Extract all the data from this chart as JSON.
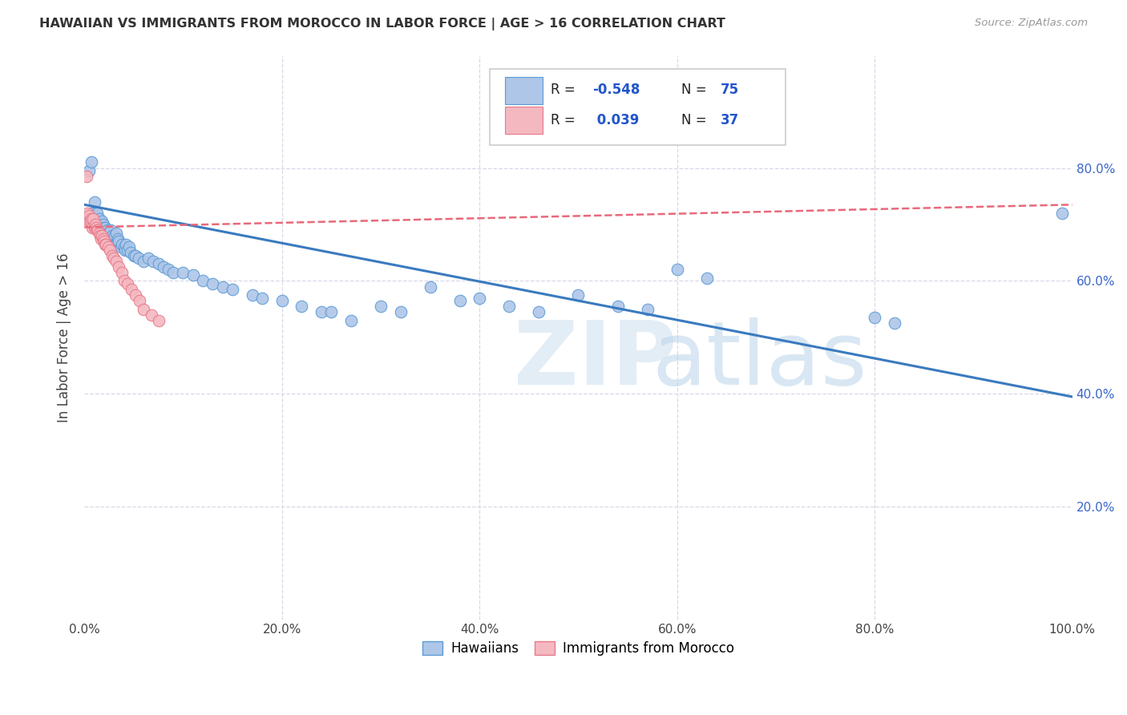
{
  "title": "HAWAIIAN VS IMMIGRANTS FROM MOROCCO IN LABOR FORCE | AGE > 16 CORRELATION CHART",
  "source": "Source: ZipAtlas.com",
  "ylabel": "In Labor Force | Age > 16",
  "xlim": [
    0.0,
    1.0
  ],
  "ylim": [
    0.0,
    1.0
  ],
  "background_color": "#ffffff",
  "grid_color": "#d8d8e8",
  "legend_R1": "-0.548",
  "legend_N1": "75",
  "legend_R2": "0.039",
  "legend_N2": "37",
  "hawaiian_color": "#aec6e8",
  "morocco_color": "#f4b8c1",
  "hawaiian_edge_color": "#5b9bd5",
  "morocco_edge_color": "#e87a8a",
  "hawaiian_line_color": "#3a7abf",
  "morocco_line_color": "#e8697a",
  "hawaiian_line_x": [
    0.0,
    1.0
  ],
  "hawaiian_line_y": [
    0.735,
    0.395
  ],
  "morocco_line_x": [
    0.0,
    1.0
  ],
  "morocco_line_y": [
    0.695,
    0.735
  ],
  "hawaiian_scatter_x": [
    0.005,
    0.007,
    0.008,
    0.01,
    0.01,
    0.012,
    0.013,
    0.013,
    0.015,
    0.015,
    0.016,
    0.017,
    0.018,
    0.019,
    0.02,
    0.021,
    0.022,
    0.023,
    0.024,
    0.025,
    0.026,
    0.027,
    0.028,
    0.03,
    0.031,
    0.032,
    0.033,
    0.034,
    0.035,
    0.037,
    0.038,
    0.04,
    0.041,
    0.042,
    0.044,
    0.045,
    0.047,
    0.05,
    0.052,
    0.055,
    0.06,
    0.065,
    0.07,
    0.075,
    0.08,
    0.085,
    0.09,
    0.1,
    0.11,
    0.12,
    0.13,
    0.14,
    0.15,
    0.17,
    0.18,
    0.2,
    0.22,
    0.24,
    0.25,
    0.27,
    0.3,
    0.32,
    0.35,
    0.38,
    0.4,
    0.43,
    0.46,
    0.5,
    0.54,
    0.57,
    0.6,
    0.63,
    0.8,
    0.82,
    0.99
  ],
  "hawaiian_scatter_y": [
    0.795,
    0.81,
    0.72,
    0.74,
    0.71,
    0.715,
    0.72,
    0.705,
    0.71,
    0.695,
    0.7,
    0.695,
    0.705,
    0.7,
    0.695,
    0.695,
    0.68,
    0.69,
    0.685,
    0.685,
    0.685,
    0.69,
    0.68,
    0.675,
    0.68,
    0.685,
    0.67,
    0.675,
    0.67,
    0.66,
    0.665,
    0.66,
    0.655,
    0.665,
    0.655,
    0.66,
    0.65,
    0.645,
    0.645,
    0.64,
    0.635,
    0.64,
    0.635,
    0.63,
    0.625,
    0.62,
    0.615,
    0.615,
    0.61,
    0.6,
    0.595,
    0.59,
    0.585,
    0.575,
    0.57,
    0.565,
    0.555,
    0.545,
    0.545,
    0.53,
    0.555,
    0.545,
    0.59,
    0.565,
    0.57,
    0.555,
    0.545,
    0.575,
    0.555,
    0.55,
    0.62,
    0.605,
    0.535,
    0.525,
    0.72
  ],
  "morocco_scatter_x": [
    0.002,
    0.003,
    0.004,
    0.005,
    0.005,
    0.006,
    0.007,
    0.008,
    0.009,
    0.01,
    0.011,
    0.012,
    0.013,
    0.014,
    0.015,
    0.016,
    0.017,
    0.018,
    0.019,
    0.02,
    0.021,
    0.022,
    0.024,
    0.026,
    0.028,
    0.03,
    0.032,
    0.035,
    0.038,
    0.04,
    0.044,
    0.048,
    0.052,
    0.056,
    0.06,
    0.068,
    0.075
  ],
  "morocco_scatter_y": [
    0.785,
    0.72,
    0.71,
    0.715,
    0.705,
    0.705,
    0.71,
    0.695,
    0.71,
    0.695,
    0.7,
    0.695,
    0.69,
    0.69,
    0.685,
    0.68,
    0.675,
    0.68,
    0.675,
    0.67,
    0.665,
    0.665,
    0.66,
    0.655,
    0.645,
    0.64,
    0.635,
    0.625,
    0.615,
    0.6,
    0.595,
    0.585,
    0.575,
    0.565,
    0.55,
    0.54,
    0.53
  ]
}
